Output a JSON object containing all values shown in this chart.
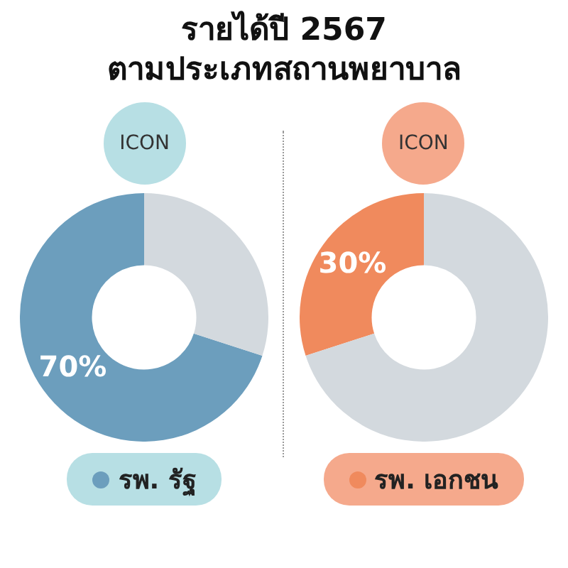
{
  "chart_data": [
    {
      "type": "donut",
      "title": "รายได้ปี 2567\nตามประเภทสถานพยาบาล",
      "annotations": [
        "ICON"
      ],
      "categories": [
        "รพ. รัฐ",
        null
      ],
      "values": [
        70,
        30
      ],
      "colors": [
        "#6c9ebd",
        "#d3d9de"
      ],
      "value_labels": [
        "70%",
        null
      ],
      "legend": "bottom"
    },
    {
      "type": "donut",
      "annotations": [
        "ICON"
      ],
      "categories": [
        "รพ. เอกชน",
        null
      ],
      "values": [
        30,
        70
      ],
      "colors": [
        "#f08a5d",
        "#d3d9de"
      ],
      "value_labels": [
        "30%",
        null
      ],
      "legend": "bottom"
    }
  ]
}
